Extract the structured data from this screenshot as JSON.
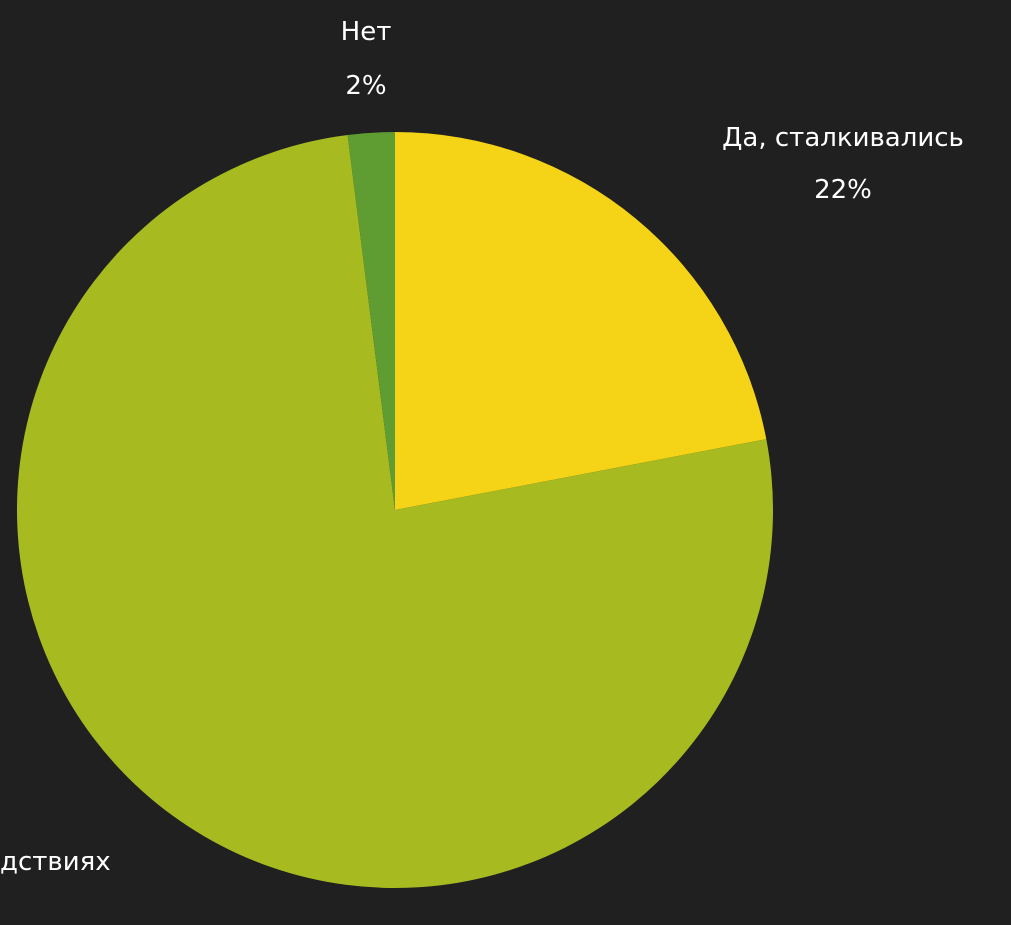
{
  "chart_data": {
    "type": "pie",
    "start_angle_deg": 0,
    "direction": "clockwise",
    "slices": [
      {
        "label": "Да, сталкивались",
        "value": 22,
        "value_label": "22%",
        "color": "#f5d316"
      },
      {
        "label": "дствиях",
        "value": 76,
        "value_label": "",
        "color": "#a7bb21"
      },
      {
        "label": "Нет",
        "value": 2,
        "value_label": "2%",
        "color": "#5f9d33"
      }
    ]
  },
  "colors": {
    "background": "#202020",
    "label_text": "#ffffff"
  }
}
